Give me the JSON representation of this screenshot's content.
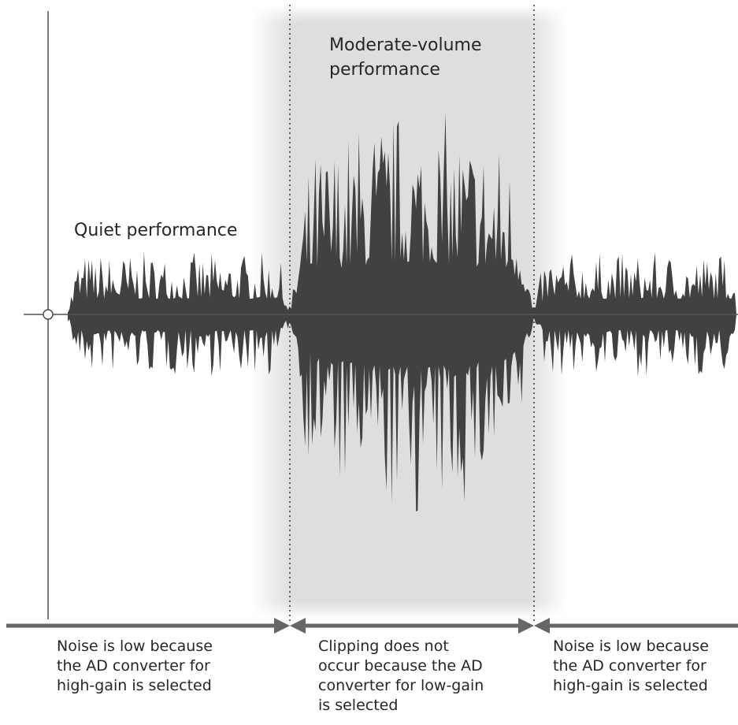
{
  "labels": {
    "quiet_performance": "Quiet performance",
    "moderate_performance_line1": "Moderate-volume",
    "moderate_performance_line2": "performance"
  },
  "captions": {
    "left": [
      "Noise is low because",
      "the AD converter for",
      "high-gain is selected"
    ],
    "middle": [
      "Clipping does not",
      "occur because the AD",
      "converter for low-gain",
      "is selected"
    ],
    "right": [
      "Noise is low because",
      "the AD converter for",
      "high-gain is selected"
    ]
  },
  "colors": {
    "waveform": "#414141",
    "highlight_band": "#dedede",
    "axis": "#444444",
    "arrow": "#666666",
    "divider": "#555555"
  },
  "waveform": {
    "quiet_level": 0.3,
    "moderate_level": 1.0
  }
}
